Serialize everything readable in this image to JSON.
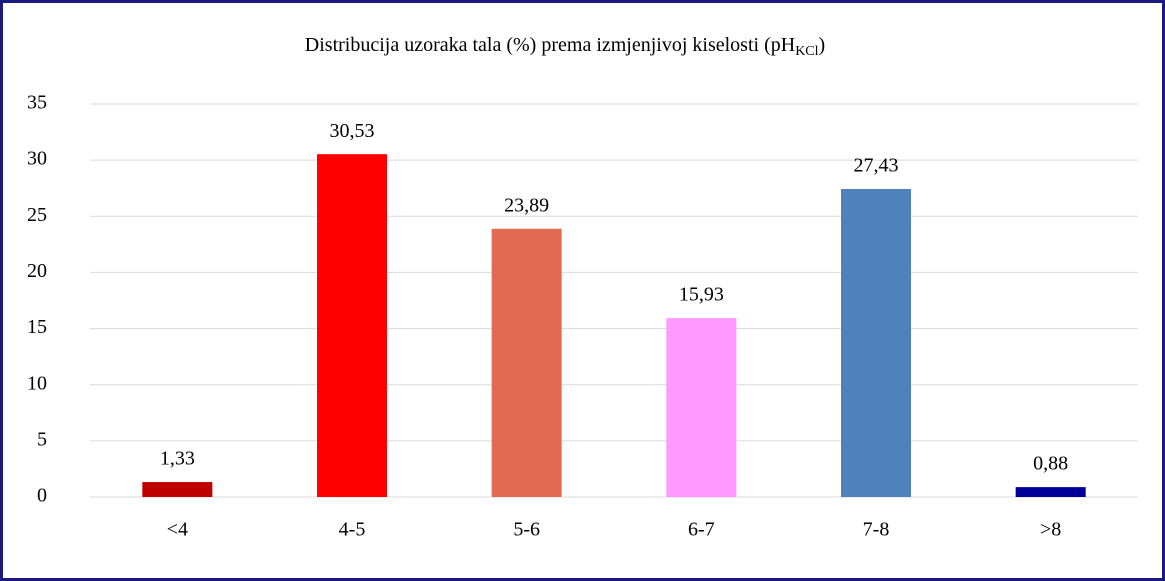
{
  "chart_data": {
    "type": "bar",
    "title": {
      "text": "Distribucija uzoraka tala (%) prema izmjenjivoj kiselosti (pH",
      "subscript": "KCl",
      "close": ")"
    },
    "categories": [
      "<4",
      "4-5",
      "5-6",
      "6-7",
      "7-8",
      ">8"
    ],
    "values": [
      1.33,
      30.53,
      23.89,
      15.93,
      27.43,
      0.88
    ],
    "value_labels": [
      "1,33",
      "30,53",
      "23,89",
      "15,93",
      "27,43",
      "0,88"
    ],
    "colors": [
      "#c00000",
      "#ff0000",
      "#e36a52",
      "#ff99ff",
      "#4f81bd",
      "#000099"
    ],
    "ylim": [
      0,
      35
    ],
    "yticks": [
      0,
      5,
      10,
      15,
      20,
      25,
      30,
      35
    ],
    "grid": true
  }
}
